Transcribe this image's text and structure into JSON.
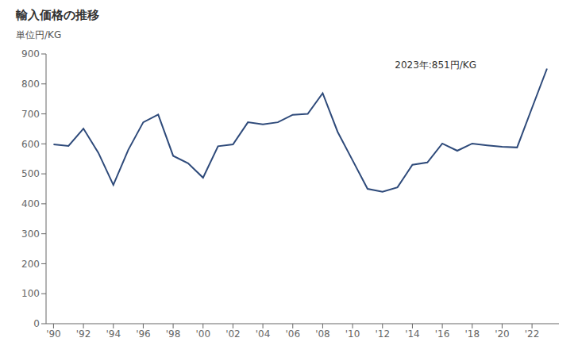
{
  "chart_data": {
    "type": "line",
    "title": "輸入価格の推移",
    "y_label": "単位円/KG",
    "annotation": "2023年:851円/KG",
    "x": [
      1990,
      1991,
      1992,
      1993,
      1994,
      1995,
      1996,
      1997,
      1998,
      1999,
      2000,
      2001,
      2002,
      2003,
      2004,
      2005,
      2006,
      2007,
      2008,
      2009,
      2010,
      2011,
      2012,
      2013,
      2014,
      2015,
      2016,
      2017,
      2018,
      2019,
      2020,
      2021,
      2022,
      2023
    ],
    "values": [
      598,
      593,
      651,
      570,
      463,
      580,
      672,
      698,
      560,
      535,
      487,
      592,
      598,
      672,
      665,
      672,
      697,
      700,
      769,
      640,
      545,
      450,
      440,
      455,
      530,
      538,
      601,
      577,
      601,
      595,
      590,
      588,
      720,
      851
    ],
    "color": "#2E4A7A",
    "xlim": [
      1989.5,
      2023.8
    ],
    "xticks": [
      {
        "value": 1990,
        "label": "'90"
      },
      {
        "value": 1992,
        "label": "'92"
      },
      {
        "value": 1994,
        "label": "'94"
      },
      {
        "value": 1996,
        "label": "'96"
      },
      {
        "value": 1998,
        "label": "'98"
      },
      {
        "value": 2000,
        "label": "'00"
      },
      {
        "value": 2002,
        "label": "'02"
      },
      {
        "value": 2004,
        "label": "'04"
      },
      {
        "value": 2006,
        "label": "'06"
      },
      {
        "value": 2008,
        "label": "'08"
      },
      {
        "value": 2010,
        "label": "'10"
      },
      {
        "value": 2012,
        "label": "'12"
      },
      {
        "value": 2014,
        "label": "'14"
      },
      {
        "value": 2016,
        "label": "'16"
      },
      {
        "value": 2018,
        "label": "'18"
      },
      {
        "value": 2020,
        "label": "'20"
      },
      {
        "value": 2022,
        "label": "'22"
      }
    ],
    "ylim": [
      0,
      900
    ],
    "yticks": [
      0,
      100,
      200,
      300,
      400,
      500,
      600,
      700,
      800,
      900
    ],
    "grid": false
  }
}
